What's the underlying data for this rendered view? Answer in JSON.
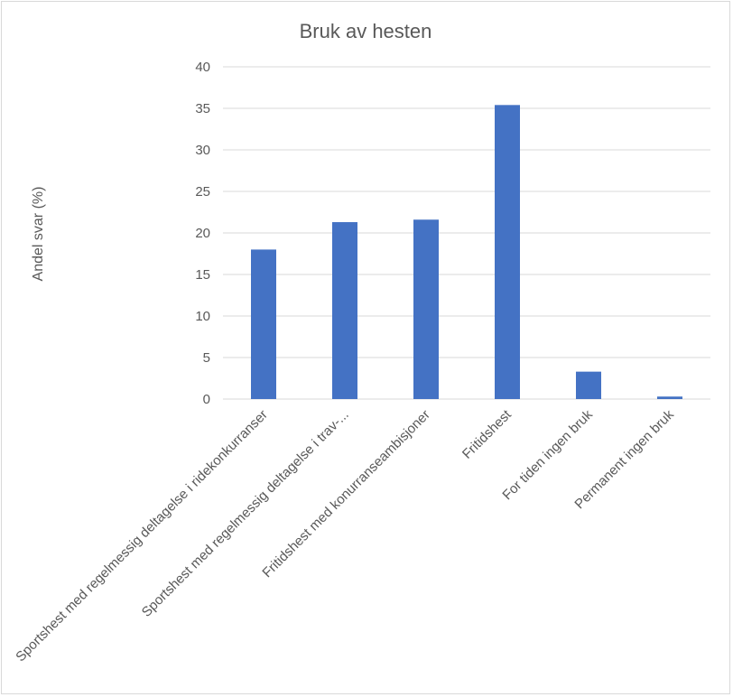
{
  "chart_data": {
    "type": "bar",
    "title": "Bruk av hesten",
    "xlabel": "",
    "ylabel": "Andel svar (%)",
    "ylim": [
      0,
      40
    ],
    "yticks": [
      0,
      5,
      10,
      15,
      20,
      25,
      30,
      35,
      40
    ],
    "grid": true,
    "legend": "none",
    "categories": [
      "Sportshest med regelmessig deltagelse i ridekonkurranser",
      "Sportshest med regelmessig deltagelse i trav-...",
      "Fritidshest med konurranseambisjoner",
      "Fritidshest",
      "For tiden ingen bruk",
      "Permanent ingen bruk"
    ],
    "values": [
      18.0,
      21.3,
      21.6,
      35.4,
      3.3,
      0.3
    ],
    "colors": {
      "bar": "#4472c4",
      "grid": "#d9d9d9",
      "text": "#595959",
      "title": "#595959"
    }
  }
}
